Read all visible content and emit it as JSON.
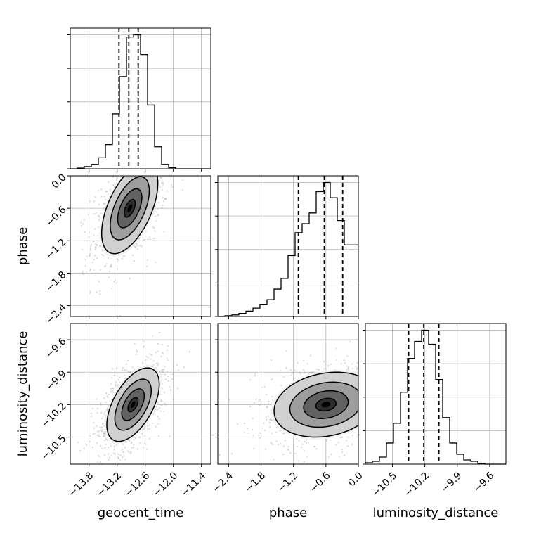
{
  "colors": {
    "axis": "#000000",
    "grid": "#b0b0b0",
    "hist": "#000000",
    "scatter": "#8c8c8c",
    "fill_levels": [
      "#f2f2f2",
      "#cfcfcf",
      "#9a9a9a",
      "#5f5f5f",
      "#2a2a2a",
      "#000000"
    ]
  },
  "chart_data": {
    "type": "corner",
    "parameters": [
      "geocent_time",
      "phase",
      "luminosity_distance"
    ],
    "axis_labels": {
      "geocent_time": "geocent_time",
      "phase": "phase",
      "luminosity_distance": "luminosity_distance"
    },
    "ranges": {
      "geocent_time": [
        -14.2,
        -11.2
      ],
      "phase": [
        -2.6,
        0.0
      ],
      "luminosity_distance": [
        -10.75,
        -9.45
      ]
    },
    "ticks": {
      "geocent_time": {
        "values": [
          -13.8,
          -13.2,
          -12.6,
          -12.0,
          -11.4
        ],
        "labels": [
          "−13.8",
          "−13.2",
          "−12.6",
          "−12.0",
          "−11.4"
        ]
      },
      "phase": {
        "values": [
          -2.4,
          -1.8,
          -1.2,
          -0.6,
          0.0
        ],
        "labels": [
          "−2.4",
          "−1.8",
          "−1.2",
          "−0.6",
          "0.0"
        ]
      },
      "luminosity_distance": {
        "values": [
          -10.5,
          -10.2,
          -9.9,
          -9.6
        ],
        "labels": [
          "−10.5",
          "−10.2",
          "−9.9",
          "−9.6"
        ]
      }
    },
    "marginals": {
      "geocent_time": {
        "bin_edges": [
          -14.2,
          -14.05,
          -13.9,
          -13.75,
          -13.6,
          -13.45,
          -13.3,
          -13.15,
          -13.0,
          -12.85,
          -12.7,
          -12.55,
          -12.4,
          -12.25,
          -12.1,
          -11.95,
          -11.8,
          -11.65,
          -11.5,
          -11.35,
          -11.2
        ],
        "counts": [
          0,
          0.3,
          1,
          2,
          5,
          11,
          25,
          42,
          60,
          61,
          52,
          29,
          10,
          2,
          0.5,
          0,
          0,
          0,
          0,
          0
        ],
        "quantiles": [
          -13.16,
          -12.95,
          -12.75
        ]
      },
      "phase": {
        "bin_edges": [
          -2.6,
          -2.47,
          -2.34,
          -2.21,
          -2.08,
          -1.95,
          -1.82,
          -1.69,
          -1.56,
          -1.43,
          -1.3,
          -1.17,
          -1.04,
          -0.91,
          -0.78,
          -0.65,
          -0.52,
          -0.39,
          -0.26,
          -0.13,
          0.0
        ],
        "counts": [
          0,
          0.5,
          1,
          2,
          3.5,
          5.5,
          8,
          11,
          18,
          25,
          40,
          55,
          61,
          68,
          82,
          88,
          78,
          63,
          47,
          47
        ],
        "quantiles": [
          -1.11,
          -0.63,
          -0.29
        ]
      },
      "luminosity_distance": {
        "bin_edges": [
          -10.75,
          -10.685,
          -10.62,
          -10.555,
          -10.49,
          -10.425,
          -10.36,
          -10.295,
          -10.23,
          -10.165,
          -10.1,
          -10.035,
          -9.97,
          -9.905,
          -9.84,
          -9.775,
          -9.71,
          -9.645,
          -9.58,
          -9.515,
          -9.45
        ],
        "counts": [
          1,
          2,
          5,
          15,
          29,
          51,
          75,
          87,
          95,
          85,
          60,
          33,
          15,
          7,
          3,
          2,
          0.5,
          0,
          0,
          0
        ],
        "quantiles": [
          -10.35,
          -10.21,
          -10.07
        ]
      }
    },
    "joint": {
      "geocent_time__phase": {
        "center": [
          -12.93,
          -0.6
        ],
        "sigma": [
          0.3,
          0.42
        ],
        "rho": 0.55,
        "contour_levels": [
          0.39,
          0.86,
          1.39,
          2.0
        ]
      },
      "geocent_time__luminosity_distance": {
        "center": [
          -12.86,
          -10.2
        ],
        "sigma": [
          0.28,
          0.17
        ],
        "rho": 0.55,
        "contour_levels": [
          0.39,
          0.86,
          1.39,
          2.0
        ]
      },
      "phase__luminosity_distance": {
        "center": [
          -0.6,
          -10.2
        ],
        "sigma": [
          0.48,
          0.15
        ],
        "rho": 0.2,
        "contour_levels": [
          0.39,
          0.86,
          1.39,
          2.0
        ]
      }
    },
    "grid": true
  }
}
